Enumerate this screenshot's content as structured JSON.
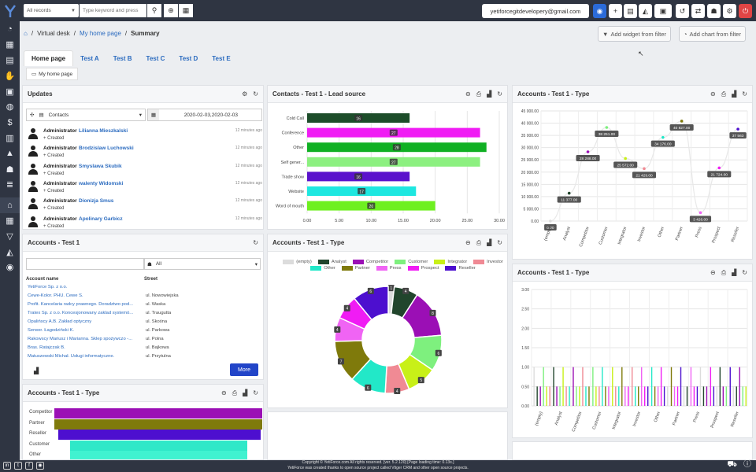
{
  "topbar": {
    "records_select": "All records",
    "search_placeholder": "Type keyword and press",
    "user_email": "yetiforcegitdevelopery@gmail.com"
  },
  "breadcrumb": {
    "virtual_desk": "Virtual desk",
    "home": "My home page",
    "current": "Summary"
  },
  "header_buttons": {
    "add_widget": "Add widget from filter",
    "add_chart": "Add chart from filter"
  },
  "tabs": [
    "Home page",
    "Test A",
    "Test B",
    "Test C",
    "Test D",
    "Test E"
  ],
  "subtab": "My home page",
  "updates": {
    "title": "Updates",
    "module_select": "Contacts",
    "date_range": "2020-02-03,2020-02-03",
    "rows": [
      {
        "user": "Administrator",
        "name": "Lilianna Mieszkalski",
        "action": "Created",
        "time": "12 minutes ago"
      },
      {
        "user": "Administrator",
        "name": "Brodzislaw Luchowski",
        "action": "Created",
        "time": "12 minutes ago"
      },
      {
        "user": "Administrator",
        "name": "Smyslawa Skubik",
        "action": "Created",
        "time": "12 minutes ago"
      },
      {
        "user": "Administrator",
        "name": "walenty Widomski",
        "action": "Created",
        "time": "12 minutes ago"
      },
      {
        "user": "Administrator",
        "name": "Dionizja Smus",
        "action": "Created",
        "time": "12 minutes ago"
      },
      {
        "user": "Administrator",
        "name": "Apolinary Garbicz",
        "action": "Created",
        "time": "12 minutes ago"
      }
    ]
  },
  "accounts_list": {
    "title": "Accounts - Test 1",
    "filter_all": "All",
    "col_name": "Account name",
    "col_street": "Street",
    "rows": [
      {
        "name": "YetiForce Sp. z o.o.",
        "street": ""
      },
      {
        "name": "Cewe-Kolor. PHU. Cewe S.",
        "street": "ul. Nowowiejska"
      },
      {
        "name": "Profit. Kancelaria radcy prawnego. Doradztwo pod...",
        "street": "ul. Waska"
      },
      {
        "name": "Tratex Sp. z o.o. Koncesjonowany zaklad systemó...",
        "street": "ul. Traugutta"
      },
      {
        "name": "Opalińscy A.B. Zakład optyczny",
        "street": "ul. Skośna"
      },
      {
        "name": "Serwer. Łagodziński K.",
        "street": "ul. Parkowa"
      },
      {
        "name": "Rakowscy Mariusz i Marianna. Sklep spożywczo -...",
        "street": "ul. Polna"
      },
      {
        "name": "Bras. Ratajczak B.",
        "street": "ul. Bajkowa"
      },
      {
        "name": "Matuszewski Michał. Usługi informatyczne.",
        "street": "ul. Przytulna"
      }
    ],
    "more_label": "More"
  },
  "funnel_panel": {
    "title": "Accounts - Test 1 - Type",
    "labels": [
      "Competitor",
      "Partner",
      "Reseller",
      "Customer",
      "Other"
    ],
    "colors": [
      "#9b0fb5",
      "#7f7a0b",
      "#4d0fcf",
      "#2fe8c8",
      "#40f2d0"
    ]
  },
  "lead_panel": {
    "title": "Contacts - Test 1 - Lead source"
  },
  "donut_panel": {
    "title": "Accounts - Test 1 - Type"
  },
  "line_panel": {
    "title": "Accounts - Test 1 - Type"
  },
  "bar2_panel": {
    "title": "Accounts - Test 1 - Type"
  },
  "chart_data": [
    {
      "type": "bar",
      "orientation": "horizontal",
      "categories": [
        "Cold Call",
        "Conference",
        "Other",
        "Self gener...",
        "Trade show",
        "Website",
        "Word of mouth"
      ],
      "values": [
        16,
        27,
        28,
        27,
        16,
        17,
        20
      ],
      "colors": [
        "#1d4d2a",
        "#f01cf4",
        "#10b023",
        "#8cf080",
        "#5a12cc",
        "#1ee7e0",
        "#6ef020"
      ],
      "xlim": [
        0,
        30
      ],
      "xticks": [
        "0.00",
        "5.00",
        "10.00",
        "15.00",
        "20.00",
        "25.00",
        "30.00"
      ]
    },
    {
      "type": "pie",
      "donut": true,
      "legend": [
        "(empty)",
        "Analyst",
        "Competitor",
        "Customer",
        "Integrator",
        "Investor",
        "Other",
        "Partner",
        "Press",
        "Prospect",
        "Reseller"
      ],
      "values": [
        1,
        4,
        8,
        6,
        5,
        4,
        6,
        7,
        4,
        4,
        6
      ],
      "colors": [
        "#dcdcdc",
        "#21452c",
        "#9b0fb5",
        "#7ef07e",
        "#c8f018",
        "#f08a94",
        "#22e8c8",
        "#7f7a0b",
        "#f064f4",
        "#f01cf4",
        "#4d0fcf"
      ],
      "legend_position": "top"
    },
    {
      "type": "line",
      "categories": [
        "(empty)",
        "Analyst",
        "Competitor",
        "Customer",
        "Integrator",
        "Investor",
        "Other",
        "Partner",
        "Press",
        "Prospect",
        "Reseller"
      ],
      "values": [
        0.0,
        11377.0,
        28288.0,
        38251.0,
        25572.0,
        21429.0,
        34176.0,
        40827.0,
        3426.0,
        21724.0,
        37563.0
      ],
      "data_labels": [
        "0.00",
        "11 377.00",
        "28 288.00",
        "38 251.00",
        "25 572.00",
        "21 429.00",
        "34 176.00",
        "40 827.00",
        "3 426.00",
        "21 724.00",
        "37 563"
      ],
      "point_colors": [
        "#dcdcdc",
        "#21452c",
        "#9b0fb5",
        "#7ef07e",
        "#c8f018",
        "#f08a94",
        "#22e8c8",
        "#7f7a0b",
        "#f064f4",
        "#f01cf4",
        "#4d0fcf"
      ],
      "ylim": [
        0,
        45000
      ],
      "yticks": [
        "0.00",
        "5 000.00",
        "10 000.00",
        "15 000.00",
        "20 000.00",
        "25 000.00",
        "30 000.00",
        "35 000.00",
        "40 000.00",
        "45 000.00"
      ]
    },
    {
      "type": "bar",
      "categories": [
        "(empty)",
        "Analyst",
        "Competitor",
        "Customer",
        "Integrator",
        "Investor",
        "Other",
        "Partner",
        "Press",
        "Prospect",
        "Reseller"
      ],
      "ylim": [
        0,
        3
      ],
      "yticks": [
        "0.00",
        "0.50",
        "1.00",
        "1.50",
        "2.00",
        "2.50",
        "3.00"
      ]
    }
  ],
  "footer": {
    "line1": "Copyright © YetiForce.com All rights reserved. [ver. 5.2.120] [Page loading time: 0.13s.]",
    "line2": "YetiForce was created thanks to open source project called Vtiger CRM and other open source projects."
  }
}
